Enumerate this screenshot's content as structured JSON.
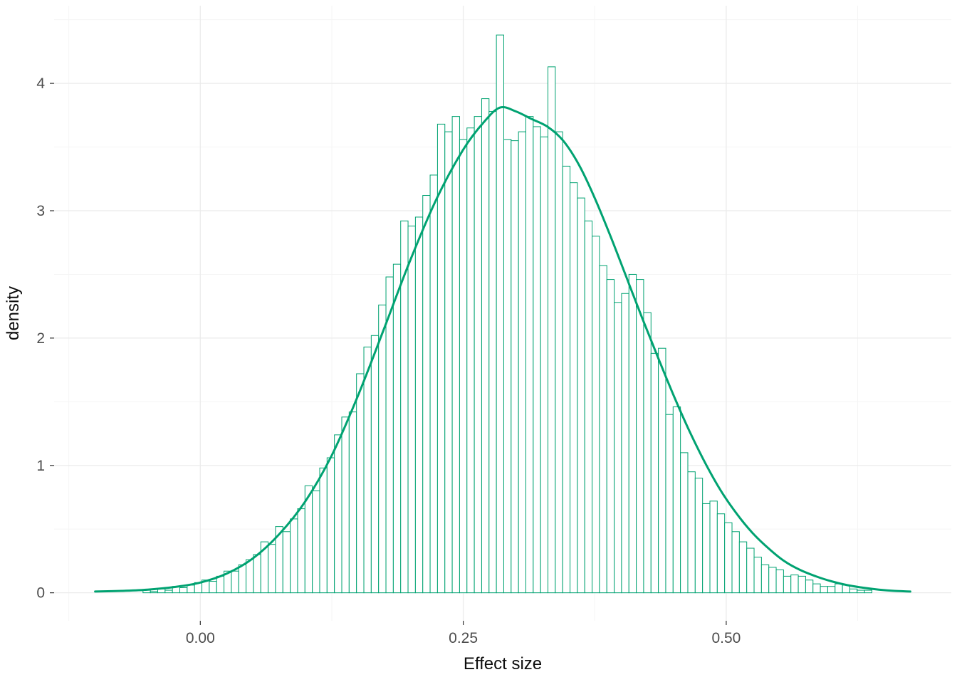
{
  "chart_data": {
    "type": "histogram",
    "title": "",
    "xlabel": "Effect size",
    "ylabel": "density",
    "legend": null,
    "grid": "on",
    "xlim": [
      -0.139,
      0.714
    ],
    "ylim": [
      -0.22,
      4.61
    ],
    "x_ticks": [
      0.0,
      0.25,
      0.5
    ],
    "x_tick_labels": [
      "0.00",
      "0.25",
      "0.50"
    ],
    "x_minor_ticks": [
      -0.125,
      0.125,
      0.375,
      0.625
    ],
    "y_ticks": [
      0,
      1,
      2,
      3,
      4
    ],
    "y_tick_labels": [
      "0",
      "1",
      "2",
      "3",
      "4"
    ],
    "y_minor_ticks": [
      0.5,
      1.5,
      2.5,
      3.5,
      4.5
    ],
    "colors": {
      "series": "#00a271",
      "bar_fill": "#ffffff",
      "grid_major": "#ebebeb",
      "grid_minor": "#f5f5f5",
      "axis_text": "#4d4d4d",
      "axis_title": "#0d0d0d",
      "tick_mark": "#333333",
      "background": "#ffffff"
    },
    "histogram": {
      "bin_start": -0.0545,
      "bin_width": 0.007,
      "densities": [
        0.02,
        0.01,
        0.03,
        0.02,
        0.05,
        0.04,
        0.06,
        0.08,
        0.1,
        0.09,
        0.13,
        0.17,
        0.17,
        0.22,
        0.26,
        0.3,
        0.4,
        0.38,
        0.52,
        0.48,
        0.58,
        0.66,
        0.84,
        0.8,
        0.98,
        1.06,
        1.24,
        1.38,
        1.42,
        1.72,
        1.93,
        2.02,
        2.26,
        2.48,
        2.58,
        2.92,
        2.88,
        2.95,
        3.12,
        3.28,
        3.68,
        3.62,
        3.74,
        3.56,
        3.65,
        3.74,
        3.88,
        3.78,
        4.38,
        3.56,
        3.55,
        3.62,
        3.74,
        3.66,
        3.58,
        4.13,
        3.62,
        3.35,
        3.22,
        3.1,
        2.92,
        2.8,
        2.57,
        2.46,
        2.28,
        2.35,
        2.5,
        2.46,
        2.2,
        1.88,
        1.92,
        1.4,
        1.46,
        1.1,
        0.95,
        0.9,
        0.7,
        0.72,
        0.62,
        0.55,
        0.48,
        0.4,
        0.35,
        0.28,
        0.22,
        0.2,
        0.18,
        0.13,
        0.14,
        0.13,
        0.1,
        0.07,
        0.05,
        0.05,
        0.07,
        0.06,
        0.03,
        0.02,
        0.02
      ]
    },
    "density_curve": {
      "x": [
        -0.1,
        -0.075,
        -0.05,
        -0.025,
        0.0,
        0.025,
        0.05,
        0.075,
        0.1,
        0.125,
        0.15,
        0.175,
        0.2,
        0.225,
        0.25,
        0.27,
        0.285,
        0.3,
        0.315,
        0.33,
        0.345,
        0.36,
        0.375,
        0.39,
        0.405,
        0.42,
        0.435,
        0.45,
        0.465,
        0.48,
        0.495,
        0.51,
        0.525,
        0.54,
        0.555,
        0.57,
        0.585,
        0.6,
        0.615,
        0.63,
        0.645,
        0.66,
        0.675
      ],
      "y": [
        0.01,
        0.015,
        0.025,
        0.045,
        0.08,
        0.15,
        0.27,
        0.46,
        0.72,
        1.08,
        1.55,
        2.08,
        2.62,
        3.1,
        3.48,
        3.7,
        3.81,
        3.78,
        3.72,
        3.66,
        3.55,
        3.36,
        3.1,
        2.8,
        2.48,
        2.16,
        1.85,
        1.55,
        1.27,
        1.02,
        0.8,
        0.62,
        0.47,
        0.35,
        0.25,
        0.18,
        0.13,
        0.09,
        0.06,
        0.04,
        0.025,
        0.015,
        0.01
      ]
    }
  }
}
